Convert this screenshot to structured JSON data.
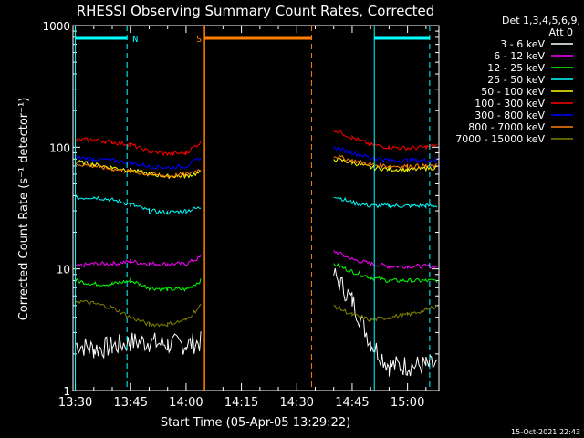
{
  "chart_data": {
    "type": "line",
    "title": "RHESSI Observing Summary Count Rates, Corrected",
    "xlabel": "Start Time (05-Apr-05 13:29:22)",
    "ylabel": "Corrected Count Rate (s⁻¹ detector⁻¹)",
    "x_ticks": [
      "13:30",
      "13:45",
      "14:00",
      "14:15",
      "14:30",
      "14:45",
      "15:00"
    ],
    "x_range": [
      "13:29:22",
      "15:08:30"
    ],
    "y_scale": "log",
    "y_ticks": [
      1,
      10,
      100,
      1000
    ],
    "ylim": [
      1,
      1000
    ],
    "legend_header": [
      "Det 1,3,4,5,6,9,",
      "Att 0"
    ],
    "legend_position": "right",
    "timestamp": "15-Oct-2021 22:43",
    "x": [
      "13:30",
      "13:35",
      "13:40",
      "13:45",
      "13:50",
      "13:55",
      "14:00",
      "14:04",
      "14:36",
      "14:40",
      "14:45",
      "14:50",
      "14:55",
      "15:00",
      "15:05",
      "15:08"
    ],
    "series": [
      {
        "name": "3 - 6 keV",
        "color": "#ffffff",
        "values": [
          2.4,
          2.2,
          2.3,
          2.5,
          2.5,
          2.4,
          2.4,
          2.5,
          null,
          9.0,
          5.5,
          2.5,
          1.6,
          1.6,
          1.6,
          1.6
        ]
      },
      {
        "name": "6 - 12 keV",
        "color": "#ff00ff",
        "values": [
          10.5,
          11,
          11,
          11.5,
          11,
          11,
          11,
          12.5,
          null,
          14,
          12,
          11,
          10.5,
          10.5,
          10.5,
          10.5
        ]
      },
      {
        "name": "12 - 25 keV",
        "color": "#00ff00",
        "values": [
          8.0,
          7.5,
          7.5,
          8,
          7,
          6.8,
          6.8,
          8,
          null,
          11,
          9.5,
          8.5,
          8,
          8,
          8,
          8
        ]
      },
      {
        "name": "25 - 50 keV",
        "color": "#00ffff",
        "values": [
          38,
          39,
          37,
          34,
          30,
          29,
          30,
          32,
          null,
          40,
          35,
          33,
          33,
          33,
          33,
          33
        ]
      },
      {
        "name": "50 - 100 keV",
        "color": "#ffff00",
        "values": [
          76,
          72,
          68,
          65,
          60,
          58,
          58,
          62,
          null,
          80,
          75,
          68,
          66,
          65,
          67,
          68
        ]
      },
      {
        "name": "100 - 300 keV",
        "color": "#ff0000",
        "values": [
          115,
          115,
          110,
          105,
          92,
          88,
          90,
          110,
          null,
          140,
          120,
          105,
          100,
          98,
          100,
          105
        ]
      },
      {
        "name": "300 - 800 keV",
        "color": "#0000ff",
        "values": [
          82,
          80,
          78,
          74,
          70,
          68,
          70,
          82,
          null,
          100,
          90,
          82,
          78,
          78,
          78,
          78
        ]
      },
      {
        "name": "800 - 7000 keV",
        "color": "#ff8000",
        "values": [
          73,
          70,
          66,
          63,
          60,
          58,
          60,
          66,
          null,
          85,
          78,
          72,
          70,
          70,
          70,
          70
        ]
      },
      {
        "name": "7000 - 15000 keV",
        "color": "#808000",
        "values": [
          5.5,
          5.2,
          4.8,
          4.0,
          3.5,
          3.5,
          3.8,
          5.0,
          null,
          5.0,
          4.2,
          3.8,
          4.0,
          4.2,
          4.6,
          5.0
        ]
      }
    ],
    "annotations": [
      {
        "label": "N",
        "color": "#00ffff",
        "start": "13:30",
        "end": "13:44"
      },
      {
        "label": "S",
        "color": "#ff8000",
        "start": "14:05",
        "end": "14:34"
      },
      {
        "label": "",
        "color": "#00ffff",
        "start": "14:51",
        "end": "15:06"
      }
    ]
  }
}
